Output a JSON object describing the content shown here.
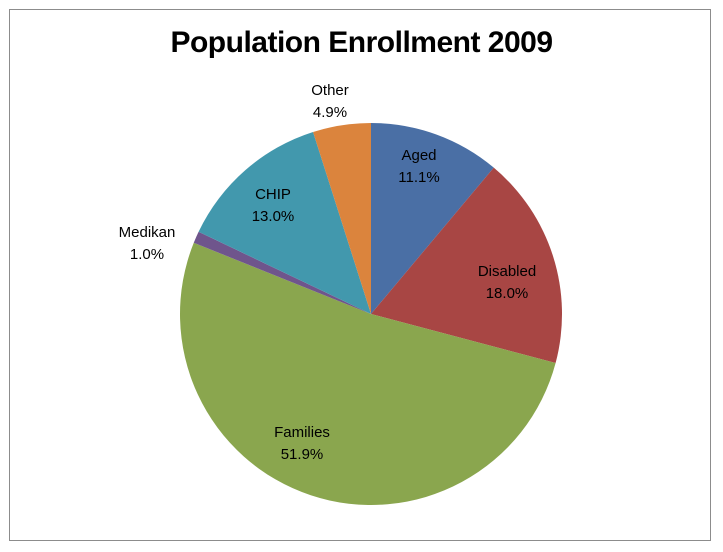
{
  "chart_data": {
    "type": "pie",
    "title": "Population Enrollment 2009",
    "slices": [
      {
        "label": "Aged",
        "value": 11.1,
        "display": "11.1%",
        "color": "#4a6fa5"
      },
      {
        "label": "Disabled",
        "value": 18.0,
        "display": "18.0%",
        "color": "#a84644"
      },
      {
        "label": "Families",
        "value": 51.9,
        "display": "51.9%",
        "color": "#8aa64e"
      },
      {
        "label": "Medikan",
        "value": 1.0,
        "display": "1.0%",
        "color": "#6f558c"
      },
      {
        "label": "CHIP",
        "value": 13.0,
        "display": "13.0%",
        "color": "#4298ad"
      },
      {
        "label": "Other",
        "value": 4.9,
        "display": "4.9%",
        "color": "#db843d"
      }
    ],
    "start_angle_deg": 0,
    "direction": "clockwise",
    "legend": "none",
    "label_placement": "inside/outside"
  }
}
